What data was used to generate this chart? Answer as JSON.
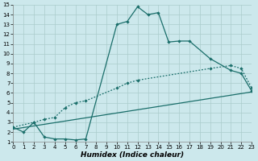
{
  "xlabel": "Humidex (Indice chaleur)",
  "background_color": "#cce8ec",
  "grid_color": "#aacccc",
  "line_color": "#1a6e6a",
  "xlim": [
    0,
    23
  ],
  "ylim": [
    1,
    15
  ],
  "xticks": [
    0,
    1,
    2,
    3,
    4,
    5,
    6,
    7,
    8,
    9,
    10,
    11,
    12,
    13,
    14,
    15,
    16,
    17,
    18,
    19,
    20,
    21,
    22,
    23
  ],
  "yticks": [
    1,
    2,
    3,
    4,
    5,
    6,
    7,
    8,
    9,
    10,
    11,
    12,
    13,
    14,
    15
  ],
  "curve1_x": [
    0,
    1,
    2,
    3,
    4,
    5,
    6,
    7,
    10,
    11,
    12,
    13,
    14,
    15,
    16,
    17,
    19,
    21,
    22,
    23
  ],
  "curve1_y": [
    2.5,
    2.0,
    3.0,
    1.5,
    1.3,
    1.3,
    1.2,
    1.3,
    13.0,
    13.3,
    14.8,
    14.0,
    14.2,
    11.2,
    11.3,
    11.3,
    9.5,
    8.3,
    8.0,
    6.2
  ],
  "curve2_x": [
    0,
    2,
    3,
    4,
    5,
    6,
    7,
    10,
    11,
    12,
    19,
    21,
    22,
    23
  ],
  "curve2_y": [
    2.5,
    3.0,
    3.3,
    3.5,
    4.5,
    5.0,
    5.2,
    6.5,
    7.0,
    7.3,
    8.5,
    8.8,
    8.5,
    6.5
  ],
  "curve3_x": [
    0,
    23
  ],
  "curve3_y": [
    2.3,
    6.1
  ],
  "tick_fontsize": 5.0,
  "xlabel_fontsize": 6.5,
  "marker_size": 2.2,
  "linewidth": 0.9
}
